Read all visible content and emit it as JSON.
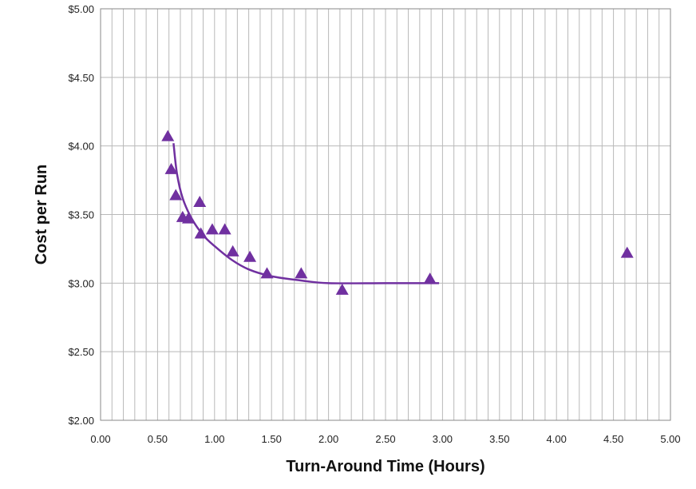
{
  "chart_data": {
    "type": "scatter",
    "title": "",
    "xlabel": "Turn-Around Time (Hours)",
    "ylabel": "Cost per Run",
    "xlim": [
      0,
      5
    ],
    "ylim": [
      2,
      5
    ],
    "x_ticks": [
      "0.00",
      "0.50",
      "1.00",
      "1.50",
      "2.00",
      "2.50",
      "3.00",
      "3.50",
      "4.00",
      "4.50",
      "5.00"
    ],
    "y_ticks": [
      "$2.00",
      "$2.50",
      "$3.00",
      "$3.50",
      "$4.00",
      "$4.50",
      "$5.00"
    ],
    "grid": true,
    "marker": "triangle",
    "series": [
      {
        "color": "#7030A0",
        "points": [
          {
            "x": 0.59,
            "y": 4.07
          },
          {
            "x": 0.62,
            "y": 3.83
          },
          {
            "x": 0.66,
            "y": 3.64
          },
          {
            "x": 0.72,
            "y": 3.48
          },
          {
            "x": 0.77,
            "y": 3.47
          },
          {
            "x": 0.87,
            "y": 3.59
          },
          {
            "x": 0.88,
            "y": 3.36
          },
          {
            "x": 0.98,
            "y": 3.39
          },
          {
            "x": 1.09,
            "y": 3.39
          },
          {
            "x": 1.16,
            "y": 3.23
          },
          {
            "x": 1.31,
            "y": 3.19
          },
          {
            "x": 1.46,
            "y": 3.07
          },
          {
            "x": 1.76,
            "y": 3.07
          },
          {
            "x": 2.12,
            "y": 2.95
          },
          {
            "x": 2.89,
            "y": 3.03
          },
          {
            "x": 4.62,
            "y": 3.22
          }
        ]
      }
    ],
    "trendline": {
      "color": "#7030A0",
      "points": [
        {
          "x": 0.64,
          "y": 4.02
        },
        {
          "x": 0.67,
          "y": 3.8
        },
        {
          "x": 0.72,
          "y": 3.62
        },
        {
          "x": 0.8,
          "y": 3.47
        },
        {
          "x": 0.9,
          "y": 3.35
        },
        {
          "x": 1.0,
          "y": 3.27
        },
        {
          "x": 1.15,
          "y": 3.17
        },
        {
          "x": 1.3,
          "y": 3.1
        },
        {
          "x": 1.5,
          "y": 3.05
        },
        {
          "x": 1.75,
          "y": 3.02
        },
        {
          "x": 2.0,
          "y": 3.0
        },
        {
          "x": 2.5,
          "y": 3.0
        },
        {
          "x": 2.97,
          "y": 3.0
        }
      ]
    }
  }
}
